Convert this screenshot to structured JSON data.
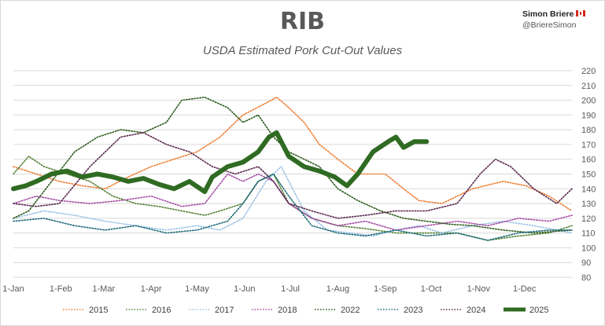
{
  "header": {
    "author_name": "Simon Briere",
    "author_handle": "@BriereSimon",
    "flag_icon": "canada-flag-icon"
  },
  "chart_data": {
    "type": "line",
    "title": "RIB",
    "subtitle": "USDA Estimated Pork Cut-Out Values",
    "xlabel": "",
    "ylabel": "",
    "ylim": [
      80,
      220
    ],
    "yticks": [
      80,
      90,
      100,
      110,
      120,
      130,
      140,
      150,
      160,
      170,
      180,
      190,
      200,
      210,
      220
    ],
    "xlim": [
      0,
      365
    ],
    "xtick_labels": [
      "1-Jan",
      "1-Feb",
      "1-Mar",
      "1-Apr",
      "1-May",
      "1-Jun",
      "1-Jul",
      "1-Aug",
      "1-Sep",
      "1-Oct",
      "1-Nov",
      "1-Dec"
    ],
    "xtick_days": [
      0,
      31,
      59,
      90,
      120,
      151,
      181,
      212,
      243,
      273,
      304,
      334
    ],
    "grid": "horizontal",
    "legend_position": "bottom",
    "series": [
      {
        "name": "2015",
        "color": "#ed7d31",
        "style": "dotted",
        "x": [
          0,
          15,
          30,
          45,
          60,
          75,
          90,
          105,
          120,
          135,
          150,
          165,
          172,
          180,
          190,
          200,
          212,
          225,
          243,
          255,
          265,
          280,
          300,
          320,
          335,
          350,
          365
        ],
        "y": [
          155,
          150,
          145,
          142,
          140,
          148,
          155,
          160,
          165,
          175,
          190,
          198,
          202,
          195,
          185,
          170,
          160,
          150,
          150,
          140,
          132,
          130,
          140,
          145,
          142,
          135,
          125
        ]
      },
      {
        "name": "2016",
        "color": "#548235",
        "style": "dotted",
        "x": [
          0,
          10,
          20,
          35,
          50,
          65,
          80,
          95,
          110,
          125,
          135,
          150,
          160,
          170,
          180,
          195,
          212,
          230,
          250,
          270,
          290,
          310,
          330,
          350,
          365
        ],
        "y": [
          150,
          162,
          155,
          150,
          145,
          135,
          130,
          128,
          125,
          122,
          125,
          130,
          145,
          150,
          130,
          120,
          115,
          113,
          110,
          110,
          110,
          105,
          108,
          110,
          115
        ]
      },
      {
        "name": "2017",
        "color": "#9dc3e6",
        "style": "dotted",
        "x": [
          0,
          20,
          40,
          60,
          80,
          100,
          120,
          135,
          150,
          165,
          175,
          190,
          205,
          220,
          235,
          250,
          265,
          280,
          300,
          320,
          340,
          365
        ],
        "y": [
          120,
          125,
          122,
          118,
          115,
          112,
          115,
          112,
          120,
          145,
          155,
          125,
          112,
          110,
          108,
          112,
          115,
          110,
          115,
          118,
          115,
          110
        ]
      },
      {
        "name": "2018",
        "color": "#a64ca6",
        "style": "dotted",
        "x": [
          0,
          15,
          30,
          50,
          70,
          90,
          110,
          125,
          140,
          150,
          160,
          170,
          180,
          195,
          212,
          230,
          250,
          270,
          290,
          310,
          330,
          350,
          365
        ],
        "y": [
          130,
          135,
          132,
          130,
          132,
          135,
          128,
          130,
          150,
          145,
          150,
          145,
          130,
          120,
          115,
          118,
          112,
          115,
          118,
          115,
          120,
          118,
          122
        ]
      },
      {
        "name": "2022",
        "color": "#2e5c1e",
        "style": "dotted",
        "x": [
          0,
          10,
          25,
          40,
          55,
          70,
          85,
          100,
          110,
          125,
          140,
          150,
          160,
          170,
          180,
          190,
          200,
          212,
          225,
          240,
          255,
          270,
          285,
          300,
          320,
          340,
          365
        ],
        "y": [
          120,
          125,
          145,
          165,
          175,
          180,
          178,
          185,
          200,
          202,
          195,
          185,
          190,
          175,
          165,
          160,
          155,
          140,
          132,
          125,
          120,
          118,
          116,
          115,
          112,
          110,
          112
        ]
      },
      {
        "name": "2023",
        "color": "#1f6b7a",
        "style": "dotted",
        "x": [
          0,
          20,
          40,
          60,
          80,
          100,
          120,
          140,
          150,
          160,
          170,
          180,
          195,
          212,
          230,
          250,
          270,
          290,
          310,
          330,
          350,
          365
        ],
        "y": [
          118,
          120,
          115,
          112,
          115,
          110,
          112,
          118,
          130,
          145,
          150,
          135,
          115,
          110,
          108,
          112,
          108,
          110,
          105,
          110,
          112,
          112
        ]
      },
      {
        "name": "2024",
        "color": "#5b2a4e",
        "style": "dotted",
        "x": [
          0,
          15,
          30,
          50,
          70,
          85,
          100,
          115,
          130,
          145,
          160,
          170,
          180,
          195,
          212,
          230,
          250,
          270,
          290,
          305,
          315,
          325,
          340,
          355,
          365
        ],
        "y": [
          130,
          128,
          130,
          155,
          175,
          178,
          170,
          165,
          155,
          150,
          155,
          145,
          130,
          125,
          120,
          122,
          125,
          125,
          130,
          150,
          160,
          155,
          140,
          130,
          140
        ]
      },
      {
        "name": "2025",
        "color": "#2f6b22",
        "style": "solid",
        "x": [
          0,
          8,
          15,
          25,
          35,
          45,
          55,
          65,
          75,
          85,
          95,
          105,
          115,
          125,
          130,
          140,
          150,
          160,
          167,
          172,
          175,
          180,
          190,
          200,
          210,
          218,
          225,
          235,
          245,
          250,
          255,
          262,
          270
        ],
        "y": [
          140,
          142,
          145,
          150,
          152,
          148,
          150,
          148,
          145,
          147,
          143,
          140,
          145,
          138,
          148,
          155,
          158,
          165,
          175,
          178,
          172,
          162,
          155,
          152,
          148,
          142,
          150,
          165,
          172,
          175,
          168,
          172,
          172
        ]
      }
    ]
  }
}
